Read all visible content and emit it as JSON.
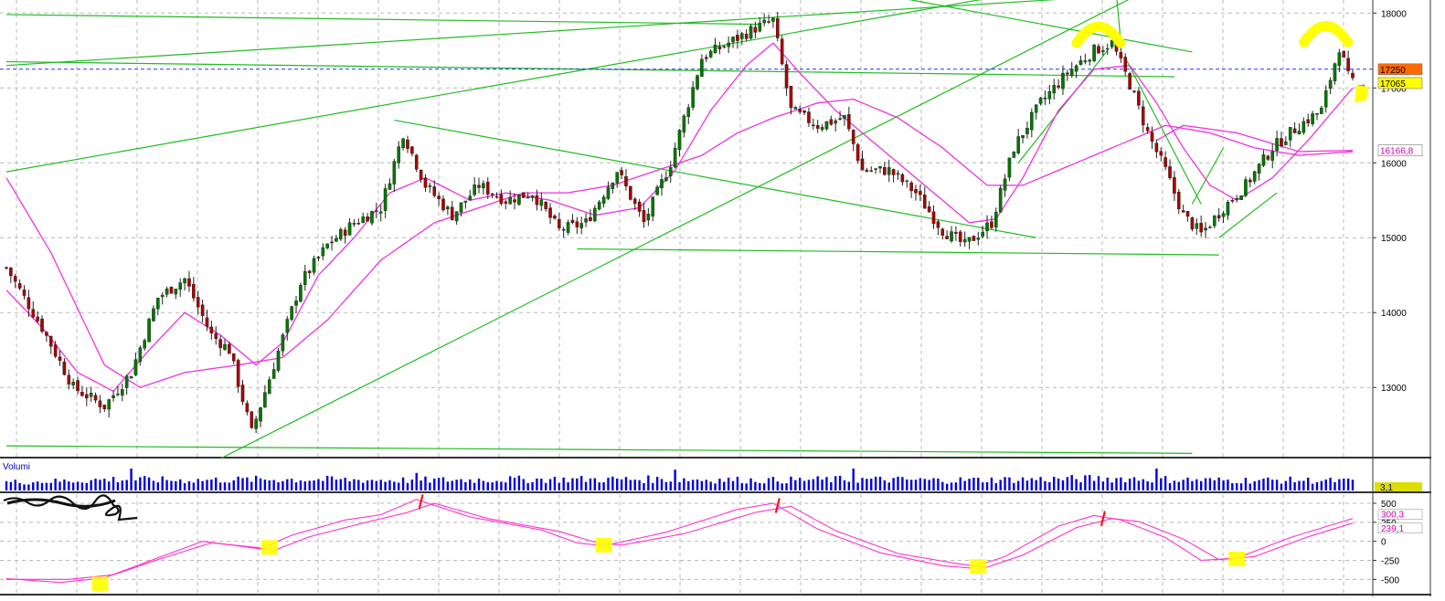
{
  "chart_data": [
    {
      "type": "candlestick",
      "panel": "price",
      "grid": true,
      "ylim": [
        12100,
        18150
      ],
      "y_ticks": [
        13000,
        14000,
        15000,
        16000,
        17000,
        18000
      ],
      "y_tick_labels": [
        "13000",
        "14000",
        "15000",
        "16000",
        "17000",
        "18000"
      ],
      "price_anchors": [
        [
          0,
          14600
        ],
        [
          8,
          13800
        ],
        [
          15,
          13000
        ],
        [
          22,
          12750
        ],
        [
          28,
          13200
        ],
        [
          34,
          14200
        ],
        [
          40,
          14450
        ],
        [
          46,
          13700
        ],
        [
          50,
          13500
        ],
        [
          55,
          12400
        ],
        [
          60,
          13300
        ],
        [
          66,
          14400
        ],
        [
          72,
          14900
        ],
        [
          78,
          15200
        ],
        [
          84,
          15400
        ],
        [
          89,
          16400
        ],
        [
          94,
          15700
        ],
        [
          100,
          15300
        ],
        [
          106,
          15700
        ],
        [
          112,
          15500
        ],
        [
          118,
          15600
        ],
        [
          124,
          15100
        ],
        [
          130,
          15200
        ],
        [
          137,
          15900
        ],
        [
          143,
          15200
        ],
        [
          149,
          16000
        ],
        [
          156,
          17400
        ],
        [
          162,
          17600
        ],
        [
          168,
          17800
        ],
        [
          172,
          17900
        ],
        [
          176,
          16700
        ],
        [
          182,
          16500
        ],
        [
          188,
          16600
        ],
        [
          192,
          15900
        ],
        [
          198,
          15900
        ],
        [
          204,
          15600
        ],
        [
          210,
          15100
        ],
        [
          215,
          14900
        ],
        [
          221,
          15200
        ],
        [
          226,
          16200
        ],
        [
          232,
          16800
        ],
        [
          238,
          17200
        ],
        [
          244,
          17500
        ],
        [
          248,
          17600
        ],
        [
          252,
          17050
        ],
        [
          256,
          16400
        ],
        [
          260,
          15900
        ],
        [
          264,
          15300
        ],
        [
          268,
          15050
        ],
        [
          273,
          15400
        ],
        [
          278,
          15700
        ],
        [
          284,
          16200
        ],
        [
          290,
          16500
        ],
        [
          295,
          16700
        ],
        [
          299,
          17550
        ],
        [
          301,
          17150
        ],
        [
          302,
          17065
        ]
      ],
      "ma_fast_anchors": [
        [
          0,
          14300
        ],
        [
          8,
          13800
        ],
        [
          16,
          13200
        ],
        [
          24,
          12950
        ],
        [
          32,
          13500
        ],
        [
          40,
          14000
        ],
        [
          48,
          13700
        ],
        [
          56,
          13300
        ],
        [
          62,
          13600
        ],
        [
          70,
          14500
        ],
        [
          78,
          15000
        ],
        [
          86,
          15600
        ],
        [
          94,
          15800
        ],
        [
          104,
          15500
        ],
        [
          112,
          15600
        ],
        [
          122,
          15500
        ],
        [
          132,
          15300
        ],
        [
          142,
          15400
        ],
        [
          150,
          15900
        ],
        [
          158,
          16700
        ],
        [
          166,
          17300
        ],
        [
          172,
          17600
        ],
        [
          178,
          17200
        ],
        [
          186,
          16700
        ],
        [
          194,
          16300
        ],
        [
          202,
          15900
        ],
        [
          210,
          15500
        ],
        [
          216,
          15200
        ],
        [
          222,
          15250
        ],
        [
          228,
          15800
        ],
        [
          236,
          16700
        ],
        [
          244,
          17250
        ],
        [
          252,
          17300
        ],
        [
          258,
          16800
        ],
        [
          264,
          16200
        ],
        [
          270,
          15700
        ],
        [
          276,
          15500
        ],
        [
          284,
          15800
        ],
        [
          292,
          16300
        ],
        [
          302,
          17000
        ]
      ],
      "ma_slow_anchors": [
        [
          0,
          15800
        ],
        [
          10,
          14800
        ],
        [
          22,
          13300
        ],
        [
          30,
          13000
        ],
        [
          40,
          13200
        ],
        [
          52,
          13300
        ],
        [
          62,
          13400
        ],
        [
          72,
          13900
        ],
        [
          84,
          14700
        ],
        [
          96,
          15200
        ],
        [
          106,
          15400
        ],
        [
          116,
          15600
        ],
        [
          126,
          15600
        ],
        [
          136,
          15700
        ],
        [
          146,
          15900
        ],
        [
          156,
          16100
        ],
        [
          164,
          16400
        ],
        [
          172,
          16600
        ],
        [
          182,
          16800
        ],
        [
          190,
          16850
        ],
        [
          200,
          16600
        ],
        [
          210,
          16200
        ],
        [
          220,
          15700
        ],
        [
          228,
          15700
        ],
        [
          236,
          15900
        ],
        [
          244,
          16100
        ],
        [
          252,
          16300
        ],
        [
          260,
          16500
        ],
        [
          270,
          16400
        ],
        [
          280,
          16200
        ],
        [
          290,
          16100
        ],
        [
          302,
          16150
        ]
      ],
      "ma_long_anchors": [
        [
          258,
          16300
        ],
        [
          264,
          16500
        ],
        [
          276,
          16400
        ],
        [
          290,
          16150
        ],
        [
          302,
          16166
        ]
      ],
      "price_labels": [
        {
          "value": 17250,
          "text": "17250",
          "color": "#ff6a00"
        },
        {
          "value": 17065,
          "text": "17065",
          "color": "#ffff00"
        },
        {
          "value": 16166.8,
          "text": "16166,8",
          "color": "#ffffff"
        }
      ],
      "trendlines": [
        {
          "from": [
            0,
            17300
          ],
          "to": [
            262,
            18280
          ]
        },
        {
          "from": [
            0,
            17350
          ],
          "to": [
            262,
            17150
          ]
        },
        {
          "from": [
            0,
            15880
          ],
          "to": [
            268,
            18700
          ]
        },
        {
          "from": [
            0,
            17980
          ],
          "to": [
            169,
            17850
          ]
        },
        {
          "from": [
            48,
            12050
          ],
          "to": [
            269,
            18700
          ]
        },
        {
          "from": [
            0,
            12220
          ],
          "to": [
            266,
            12120
          ]
        },
        {
          "from": [
            87,
            16570
          ],
          "to": [
            231,
            15000
          ]
        },
        {
          "from": [
            128,
            14850
          ],
          "to": [
            272,
            14770
          ]
        },
        {
          "from": [
            198,
            18230
          ],
          "to": [
            266,
            17480
          ]
        },
        {
          "from": [
            227,
            16000
          ],
          "to": [
            247,
            17500
          ]
        },
        {
          "from": [
            249,
            18250
          ],
          "to": [
            250,
            17600
          ]
        },
        {
          "from": [
            251,
            17400
          ],
          "to": [
            268,
            15450
          ]
        },
        {
          "from": [
            266,
            15450
          ],
          "to": [
            273,
            16200
          ]
        },
        {
          "from": [
            272,
            15000
          ],
          "to": [
            285,
            15600
          ]
        }
      ],
      "reference_line": {
        "value": 17250,
        "color": "#2233ff",
        "style": "dashed"
      },
      "highlights": [
        {
          "kind": "arc",
          "at": [
            245,
            17770
          ],
          "color": "#ffff00"
        },
        {
          "kind": "arc",
          "at": [
            296,
            17780
          ],
          "color": "#ffff00"
        },
        {
          "kind": "mark",
          "at": [
            304,
            16950
          ],
          "color": "#ffff00"
        }
      ]
    },
    {
      "type": "bar",
      "panel": "volume",
      "title": "Volumi",
      "value_label": "3,1",
      "color": "#0000dd",
      "levels": [
        [
          0,
          0.45
        ],
        [
          12,
          0.5
        ],
        [
          24,
          0.6
        ],
        [
          40,
          0.55
        ],
        [
          60,
          0.6
        ],
        [
          90,
          0.55
        ],
        [
          120,
          0.6
        ],
        [
          150,
          0.6
        ],
        [
          172,
          0.55
        ],
        [
          190,
          0.6
        ],
        [
          210,
          0.55
        ],
        [
          230,
          0.6
        ],
        [
          250,
          0.65
        ],
        [
          270,
          0.55
        ],
        [
          290,
          0.55
        ],
        [
          302,
          0.5
        ]
      ],
      "spikes": [
        [
          28,
          1.0
        ],
        [
          92,
          0.8
        ],
        [
          150,
          0.95
        ],
        [
          190,
          1.0
        ],
        [
          258,
          1.0
        ]
      ]
    },
    {
      "type": "line",
      "panel": "oscillator",
      "ylim": [
        -640,
        620
      ],
      "y_ticks": [
        500,
        250,
        0,
        -250,
        -500
      ],
      "y_tick_labels": [
        "500",
        "250",
        "0",
        "-250",
        "-500"
      ],
      "value_labels": [
        "300,3",
        "239,1"
      ],
      "line_color": "#ff33cc",
      "series": [
        {
          "name": "oscillator",
          "anchors": [
            [
              0,
              -490
            ],
            [
              12,
              -540
            ],
            [
              22,
              -480
            ],
            [
              32,
              -260
            ],
            [
              44,
              0
            ],
            [
              52,
              -60
            ],
            [
              57,
              -100
            ],
            [
              64,
              80
            ],
            [
              76,
              280
            ],
            [
              84,
              350
            ],
            [
              92,
              550
            ],
            [
              104,
              320
            ],
            [
              120,
              150
            ],
            [
              128,
              -20
            ],
            [
              134,
              -60
            ],
            [
              148,
              120
            ],
            [
              164,
              420
            ],
            [
              172,
              500
            ],
            [
              182,
              160
            ],
            [
              196,
              -150
            ],
            [
              210,
              -320
            ],
            [
              216,
              -350
            ],
            [
              224,
              -200
            ],
            [
              236,
              200
            ],
            [
              244,
              340
            ],
            [
              250,
              280
            ],
            [
              260,
              50
            ],
            [
              268,
              -250
            ],
            [
              276,
              -220
            ],
            [
              288,
              50
            ],
            [
              302,
              300
            ]
          ]
        },
        {
          "name": "signal",
          "anchors": [
            [
              0,
              -500
            ],
            [
              14,
              -500
            ],
            [
              24,
              -440
            ],
            [
              34,
              -240
            ],
            [
              46,
              -20
            ],
            [
              56,
              -80
            ],
            [
              60,
              -120
            ],
            [
              68,
              60
            ],
            [
              80,
              240
            ],
            [
              90,
              380
            ],
            [
              96,
              500
            ],
            [
              108,
              300
            ],
            [
              124,
              130
            ],
            [
              132,
              -10
            ],
            [
              138,
              -50
            ],
            [
              152,
              100
            ],
            [
              168,
              380
            ],
            [
              176,
              460
            ],
            [
              186,
              140
            ],
            [
              200,
              -160
            ],
            [
              214,
              -300
            ],
            [
              220,
              -340
            ],
            [
              228,
              -180
            ],
            [
              240,
              180
            ],
            [
              248,
              300
            ],
            [
              254,
              260
            ],
            [
              264,
              30
            ],
            [
              272,
              -240
            ],
            [
              280,
              -200
            ],
            [
              292,
              60
            ],
            [
              302,
              239
            ]
          ]
        }
      ],
      "markers": [
        {
          "kind": "square",
          "at": [
            21,
            -560
          ],
          "color": "#ffff00"
        },
        {
          "kind": "square",
          "at": [
            59,
            -80
          ],
          "color": "#ffff00"
        },
        {
          "kind": "square",
          "at": [
            134,
            -50
          ],
          "color": "#ffff00"
        },
        {
          "kind": "square",
          "at": [
            218,
            -330
          ],
          "color": "#ffff00"
        },
        {
          "kind": "square",
          "at": [
            276,
            -230
          ],
          "color": "#ffff00"
        },
        {
          "kind": "tick",
          "at": [
            93,
            520
          ],
          "color": "#ff0000"
        },
        {
          "kind": "tick",
          "at": [
            173,
            470
          ],
          "color": "#ff0000"
        },
        {
          "kind": "tick",
          "at": [
            246,
            300
          ],
          "color": "#ff0000"
        }
      ]
    }
  ]
}
